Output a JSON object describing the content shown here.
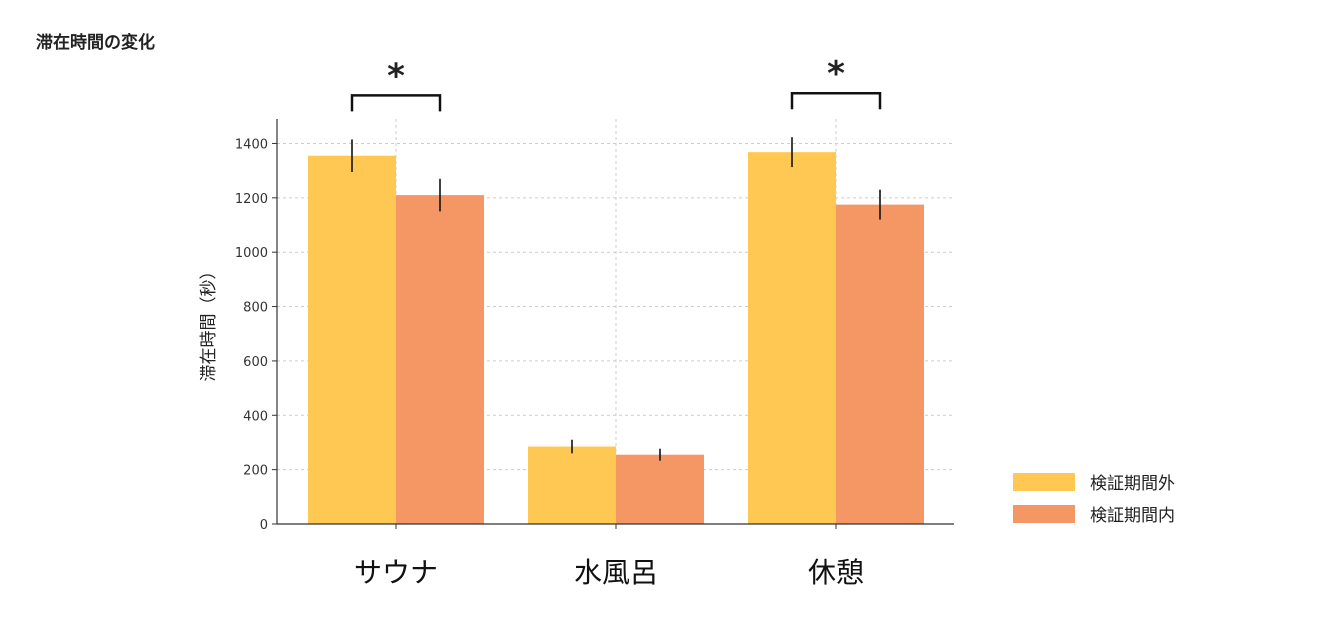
{
  "title": "滞在時間の変化",
  "chart_data": {
    "type": "bar",
    "categories": [
      "サウナ",
      "水風呂",
      "休憩"
    ],
    "ylabel": "滞在時間（秒）",
    "xlabel": "",
    "ylim": [
      0,
      1490
    ],
    "yticks": [
      0,
      200,
      400,
      600,
      800,
      1000,
      1200,
      1400
    ],
    "grid": true,
    "legend_position": "right",
    "series": [
      {
        "name": "検証期間外",
        "color": "#FFC852",
        "values": [
          1355,
          285,
          1368
        ],
        "errors": [
          60,
          25,
          55
        ]
      },
      {
        "name": "検証期間内",
        "color": "#F59765",
        "values": [
          1210,
          255,
          1175
        ],
        "errors": [
          60,
          22,
          55
        ]
      }
    ],
    "significance": [
      {
        "category_index": 0,
        "label": "*"
      },
      {
        "category_index": 2,
        "label": "*"
      }
    ]
  }
}
